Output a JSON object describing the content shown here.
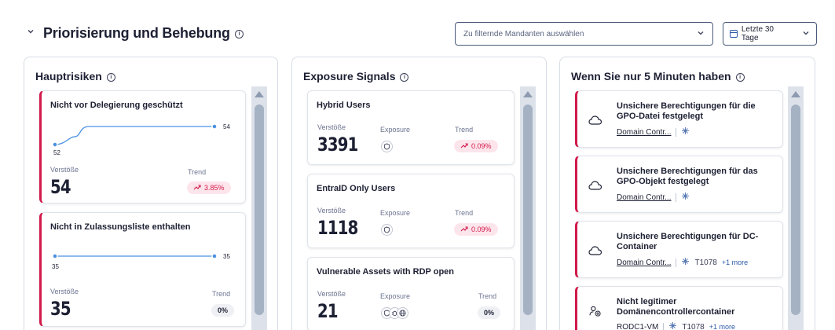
{
  "header": {
    "title": "Priorisierung und Behebung",
    "filter_placeholder": "Zu filternde Mandanten auswählen",
    "date_range": "Letzte 30 Tage"
  },
  "colors": {
    "accent_red": "#d1194a",
    "accent_blue": "#2b5aa8",
    "trend_up_bg": "#fde5ec"
  },
  "panels": {
    "risks": {
      "title": "Hauptrisiken",
      "cards": [
        {
          "title": "Nicht vor Delegierung geschützt",
          "start_value": "52",
          "end_value": "54",
          "violations_label": "Verstöße",
          "violations": "54",
          "trend_label": "Trend",
          "trend": "3.85%",
          "trend_direction": "up"
        },
        {
          "title": "Nicht in Zulassungsliste enthalten",
          "start_value": "35",
          "end_value": "35",
          "violations_label": "Verstöße",
          "violations": "35",
          "trend_label": "Trend",
          "trend": "0%",
          "trend_direction": "flat"
        }
      ]
    },
    "signals": {
      "title": "Exposure Signals",
      "cards": [
        {
          "title": "Hybrid Users",
          "violations_label": "Verstöße",
          "exposure_label": "Exposure",
          "trend_label": "Trend",
          "violations": "3391",
          "trend": "0.09%",
          "icons": [
            "shield-icon"
          ]
        },
        {
          "title": "EntraID Only Users",
          "violations_label": "Verstöße",
          "exposure_label": "Exposure",
          "trend_label": "Trend",
          "violations": "1118",
          "trend": "0.09%",
          "icons": [
            "shield-icon"
          ]
        },
        {
          "title": "Vulnerable Assets with RDP open",
          "violations_label": "Verstöße",
          "exposure_label": "Exposure",
          "trend_label": "Trend",
          "violations": "21",
          "trend": "0%",
          "icons": [
            "shield-icon",
            "bug-icon",
            "globe-icon"
          ]
        }
      ]
    },
    "five_min": {
      "title": "Wenn Sie nur 5 Minuten haben",
      "items": [
        {
          "title": "Unsichere Berechtigungen für die GPO-Datei festgelegt",
          "asset": "Domain Contr...",
          "icon": "cloud-icon",
          "technique": "",
          "more": ""
        },
        {
          "title": "Unsichere Berechtigungen für das GPO-Objekt festgelegt",
          "asset": "Domain Contr...",
          "icon": "cloud-icon",
          "technique": "",
          "more": ""
        },
        {
          "title": "Unsichere Berechtigungen für DC-Container",
          "asset": "Domain Contr...",
          "icon": "cloud-icon",
          "technique": "T1078",
          "more": "+1 more"
        },
        {
          "title": "Nicht legitimer Domänencontrollercontainer",
          "asset": "RODC1-VM",
          "icon": "user-at-icon",
          "technique": "T1078",
          "more": "+1 more"
        }
      ]
    }
  }
}
